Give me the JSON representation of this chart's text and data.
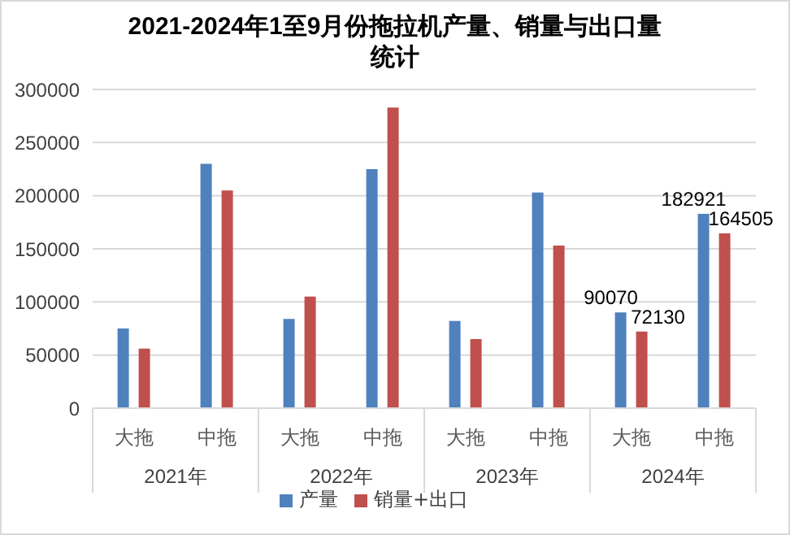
{
  "chart_data": {
    "type": "bar",
    "title": "2021-2024年1至9月份拖拉机产量、销量与出口量统计",
    "categories": [
      "大拖",
      "中拖",
      "大拖",
      "中拖",
      "大拖",
      "中拖",
      "大拖",
      "中拖"
    ],
    "series": [
      {
        "name": "产量",
        "color": "#4f81bd",
        "values": [
          75000,
          230000,
          84000,
          225000,
          82000,
          203000,
          90070,
          182921
        ],
        "value_labels": [
          null,
          null,
          null,
          null,
          null,
          null,
          "90070",
          "182921"
        ]
      },
      {
        "name": "销量+出口",
        "color": "#c0504d",
        "values": [
          56000,
          205000,
          105000,
          283000,
          65000,
          153000,
          72130,
          164505
        ],
        "value_labels": [
          null,
          null,
          null,
          null,
          null,
          null,
          "72130",
          "164505"
        ]
      }
    ],
    "annotations": [
      "2021年",
      "2022年",
      "2023年",
      "2024年"
    ],
    "ylim": [
      0,
      300000
    ],
    "yticks": [
      0,
      50000,
      100000,
      150000,
      200000,
      250000,
      300000
    ],
    "grid": "y",
    "legend": "bottom"
  }
}
